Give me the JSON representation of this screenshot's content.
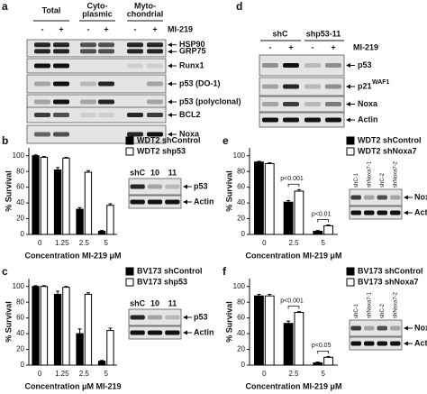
{
  "panel_a": {
    "label": "a",
    "groups": [
      [
        "Total"
      ],
      [
        "Cyto-",
        "plasmic"
      ],
      [
        "Myto-",
        "chondrial"
      ]
    ],
    "treatment": "MI-219",
    "signs": [
      "-",
      "+",
      "-",
      "+",
      "-",
      "+"
    ],
    "blots": [
      [
        "HSP90",
        "GRP75"
      ],
      [
        "Runx1"
      ],
      [
        "p53 (DO-1)"
      ],
      [
        "p53 (polyclonal)"
      ],
      [
        "BCL2"
      ],
      [
        "Noxa"
      ]
    ]
  },
  "panel_d": {
    "label": "d",
    "groups": [
      "shC",
      "shp53-11"
    ],
    "treatment": "MI-219",
    "signs": [
      "-",
      "+",
      "-",
      "+"
    ],
    "blots": [
      {
        "name": "p53"
      },
      {
        "name": "p21",
        "sup": "WAF1"
      },
      {
        "name": "Noxa"
      },
      {
        "name": "Actin"
      }
    ]
  },
  "chart_data": [
    {
      "type": "bar",
      "panel": "b",
      "y_label": "% Survival",
      "x_label": "Concentration MI-219 μM",
      "categories": [
        "0",
        "1.25",
        "2.5",
        "5"
      ],
      "series": [
        {
          "name": "WDT2 shControl",
          "color": "#000000",
          "values": [
            100,
            82,
            32,
            4
          ],
          "errors": [
            1,
            3,
            2,
            1
          ]
        },
        {
          "name": "WDT2 shp53",
          "color": "#ffffff",
          "values": [
            98,
            97,
            79,
            37
          ],
          "errors": [
            1,
            1,
            2,
            2
          ]
        }
      ],
      "ylim": [
        0,
        110
      ],
      "yticks": [
        0,
        20,
        40,
        60,
        80,
        100
      ],
      "inset": {
        "lanes": [
          "shC",
          "10",
          "11"
        ],
        "bands": [
          "p53",
          "Actin"
        ]
      }
    },
    {
      "type": "bar",
      "panel": "c",
      "y_label": "% Survival",
      "x_label": "Concentration μM MI-219",
      "categories": [
        "0",
        "1.25",
        "2.5",
        "5"
      ],
      "series": [
        {
          "name": "BV173 shControl",
          "color": "#000000",
          "values": [
            100,
            90,
            40,
            5
          ],
          "errors": [
            1,
            4,
            6,
            1
          ]
        },
        {
          "name": "BV173 shp53",
          "color": "#ffffff",
          "values": [
            100,
            99,
            90,
            44
          ],
          "errors": [
            1,
            1,
            2,
            3
          ]
        }
      ],
      "ylim": [
        0,
        110
      ],
      "yticks": [
        0,
        20,
        40,
        60,
        80,
        100
      ],
      "inset": {
        "lanes": [
          "shC",
          "10",
          "11"
        ],
        "bands": [
          "p53",
          "Actin"
        ]
      }
    },
    {
      "type": "bar",
      "panel": "e",
      "y_label": "% Survival",
      "x_label": "Concentration MI-219 μM",
      "categories": [
        "0",
        "2.5",
        "5"
      ],
      "series": [
        {
          "name": "WDT2 shControl",
          "color": "#000000",
          "values": [
            92,
            41,
            4
          ],
          "errors": [
            1,
            2,
            1
          ]
        },
        {
          "name": "WDT2 shNoxa7",
          "color": "#ffffff",
          "values": [
            90,
            55,
            11
          ],
          "errors": [
            1,
            2,
            1
          ]
        }
      ],
      "ylim": [
        0,
        110
      ],
      "yticks": [
        0,
        20,
        40,
        60,
        80,
        100
      ],
      "annotations": [
        "p<0.001",
        "p<0.01"
      ],
      "inset": {
        "lanes": [
          "shC-1",
          "shNoxa7-1",
          "shC-2",
          "shNoxa7-2"
        ],
        "bands": [
          "Noxa",
          "Actin"
        ]
      }
    },
    {
      "type": "bar",
      "panel": "f",
      "y_label": "% Survival",
      "x_label": "Concentration MI-219 μM",
      "categories": [
        "0",
        "2.5",
        "5"
      ],
      "series": [
        {
          "name": "BV173 shControl",
          "color": "#000000",
          "values": [
            88,
            53,
            3
          ],
          "errors": [
            2,
            3,
            1
          ]
        },
        {
          "name": "BV173 shNoxa7",
          "color": "#ffffff",
          "values": [
            88,
            67,
            10
          ],
          "errors": [
            2,
            1,
            1
          ]
        }
      ],
      "ylim": [
        0,
        110
      ],
      "yticks": [
        0,
        20,
        40,
        60,
        80,
        100
      ],
      "annotations": [
        "p<0.001",
        "p<0.05"
      ],
      "inset": {
        "lanes": [
          "shC-1",
          "shNoxa7-1",
          "shC-2",
          "shNoxa7-2"
        ],
        "bands": [
          "Noxa",
          "Actin"
        ]
      }
    }
  ]
}
